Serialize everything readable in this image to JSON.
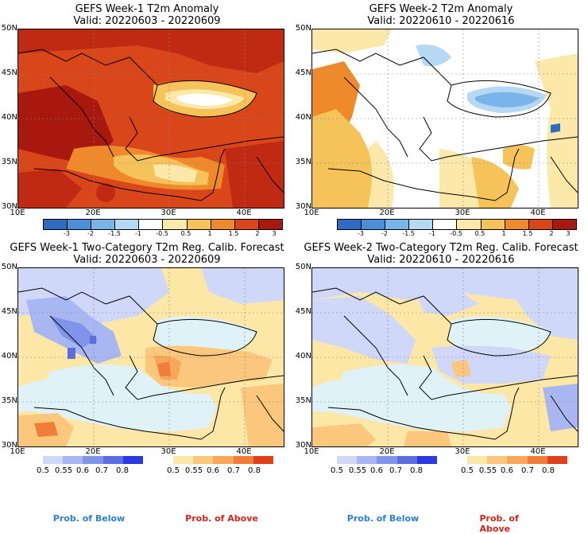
{
  "panels": [
    {
      "id": "w1-anom",
      "title": "GEFS Week-1 T2m Anomaly",
      "valid": "Valid: 20220603 - 20220609",
      "lat_labels": [
        "50N",
        "45N",
        "40N",
        "35N",
        "30N"
      ],
      "lon_labels": [
        "10E",
        "20E",
        "30E",
        "40E"
      ],
      "colorbar_ticks": [
        "-3",
        "-2",
        "-1.5",
        "-1",
        "-0.5",
        "0.5",
        "1",
        "1.5",
        "2",
        "3"
      ]
    },
    {
      "id": "w2-anom",
      "title": "GEFS Week-2 T2m Anomaly",
      "valid": "Valid: 20220610 - 20220616",
      "lat_labels": [
        "50N",
        "45N",
        "40N",
        "35N",
        "30N"
      ],
      "lon_labels": [
        "10E",
        "20E",
        "30E",
        "40E"
      ],
      "colorbar_ticks": [
        "-3",
        "-2",
        "-1.5",
        "-1",
        "-0.5",
        "0.5",
        "1",
        "1.5",
        "2",
        "3"
      ]
    },
    {
      "id": "w1-prob",
      "title": "GEFS Week-1 Two-Category T2m Reg. Calib. Forecast",
      "valid": "Valid: 20220603 - 20220609",
      "lat_labels": [
        "50N",
        "45N",
        "40N",
        "35N",
        "30N"
      ],
      "lon_labels": [
        "10E",
        "20E",
        "30E",
        "40E"
      ],
      "below_ticks": [
        "0.5",
        "0.55",
        "0.6",
        "0.7",
        "0.8"
      ],
      "above_ticks": [
        "0.5",
        "0.55",
        "0.6",
        "0.7",
        "0.8"
      ]
    },
    {
      "id": "w2-prob",
      "title": "GEFS Week-2 Two-Category T2m Reg. Calib. Forecast",
      "valid": "Valid: 20220610 - 20220616",
      "lat_labels": [
        "50N",
        "45N",
        "40N",
        "35N",
        "30N"
      ],
      "lon_labels": [
        "10E",
        "20E",
        "30E",
        "40E"
      ],
      "below_ticks": [
        "0.5",
        "0.55",
        "0.6",
        "0.7",
        "0.8"
      ],
      "above_ticks": [
        "0.5",
        "0.55",
        "0.6",
        "0.7",
        "0.8"
      ]
    }
  ],
  "footer": {
    "prob_below": "Prob. of Below",
    "prob_above": "Prob. of Above"
  },
  "colors": {
    "anomaly_scale": [
      "#2d6cc2",
      "#4a8fd8",
      "#7ab5ea",
      "#b5d9f5",
      "#ffffff",
      "#fce8a8",
      "#f6c25a",
      "#ef8a2c",
      "#d9461a",
      "#a8180e"
    ],
    "below_scale": [
      "#cfd8f8",
      "#a8b6f2",
      "#8094ea",
      "#5a6ee0",
      "#2b3ae0"
    ],
    "above_scale": [
      "#fde7a6",
      "#fbc77c",
      "#f8a658",
      "#f27c3a",
      "#e0401c"
    ],
    "sea": "#dff2f8",
    "footer_below": "#2a7fd8",
    "footer_above": "#d8221a"
  }
}
